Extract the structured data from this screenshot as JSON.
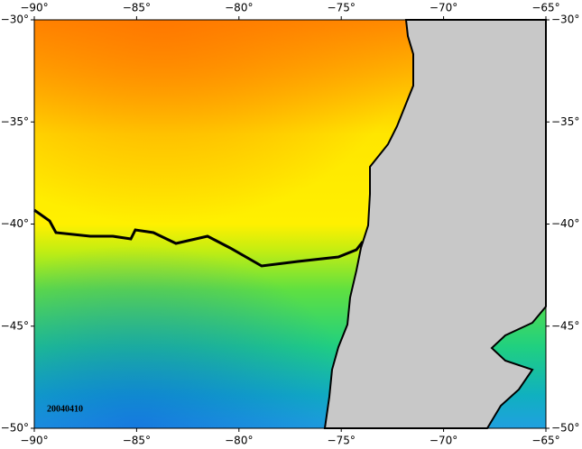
{
  "map": {
    "xlim": [
      -90,
      -65
    ],
    "ylim": [
      -50,
      -30
    ],
    "xticks": [
      {
        "value": -90,
        "label": "−90°"
      },
      {
        "value": -85,
        "label": "−85°"
      },
      {
        "value": -80,
        "label": "−80°"
      },
      {
        "value": -75,
        "label": "−75°"
      },
      {
        "value": -70,
        "label": "−70°"
      },
      {
        "value": -65,
        "label": "−65°"
      }
    ],
    "yticks": [
      {
        "value": -30,
        "label": "−30°"
      },
      {
        "value": -35,
        "label": "−35°"
      },
      {
        "value": -40,
        "label": "−40°"
      },
      {
        "value": -45,
        "label": "−45°"
      },
      {
        "value": -50,
        "label": "−50°"
      }
    ],
    "date_label": "20040410"
  }
}
